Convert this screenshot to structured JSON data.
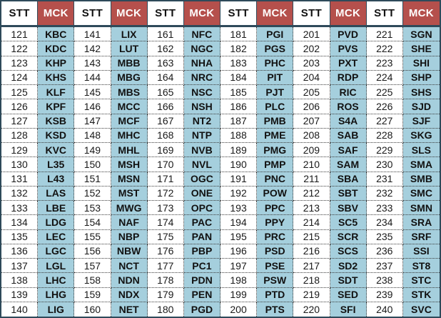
{
  "header": {
    "stt": "STT",
    "mck": "MCK"
  },
  "colors": {
    "header_red": "#B5504C",
    "ticker_blue": "#A5CFDD",
    "border_dark": "#2E4A5A",
    "header_text_white": "#FFFFFF",
    "text_black": "#111111"
  },
  "groups": [
    {
      "rows": [
        [
          "121",
          "KBC"
        ],
        [
          "122",
          "KDC"
        ],
        [
          "123",
          "KHP"
        ],
        [
          "124",
          "KHS"
        ],
        [
          "125",
          "KLF"
        ],
        [
          "126",
          "KPF"
        ],
        [
          "127",
          "KSB"
        ],
        [
          "128",
          "KSD"
        ],
        [
          "129",
          "KVC"
        ],
        [
          "130",
          "L35"
        ],
        [
          "131",
          "L43"
        ],
        [
          "132",
          "LAS"
        ],
        [
          "133",
          "LBE"
        ],
        [
          "134",
          "LDG"
        ],
        [
          "135",
          "LEC"
        ],
        [
          "136",
          "LGC"
        ],
        [
          "137",
          "LGL"
        ],
        [
          "138",
          "LHC"
        ],
        [
          "139",
          "LHG"
        ],
        [
          "140",
          "LIG"
        ]
      ]
    },
    {
      "rows": [
        [
          "141",
          "LIX"
        ],
        [
          "142",
          "LUT"
        ],
        [
          "143",
          "MBB"
        ],
        [
          "144",
          "MBG"
        ],
        [
          "145",
          "MBS"
        ],
        [
          "146",
          "MCC"
        ],
        [
          "147",
          "MCF"
        ],
        [
          "148",
          "MHC"
        ],
        [
          "149",
          "MHL"
        ],
        [
          "150",
          "MSH"
        ],
        [
          "151",
          "MSN"
        ],
        [
          "152",
          "MST"
        ],
        [
          "153",
          "MWG"
        ],
        [
          "154",
          "NAF"
        ],
        [
          "155",
          "NBP"
        ],
        [
          "156",
          "NBW"
        ],
        [
          "157",
          "NCT"
        ],
        [
          "158",
          "NDN"
        ],
        [
          "159",
          "NDX"
        ],
        [
          "160",
          "NET"
        ]
      ]
    },
    {
      "rows": [
        [
          "161",
          "NFC"
        ],
        [
          "162",
          "NGC"
        ],
        [
          "163",
          "NHA"
        ],
        [
          "164",
          "NRC"
        ],
        [
          "165",
          "NSC"
        ],
        [
          "166",
          "NSH"
        ],
        [
          "167",
          "NT2"
        ],
        [
          "168",
          "NTP"
        ],
        [
          "169",
          "NVB"
        ],
        [
          "170",
          "NVL"
        ],
        [
          "171",
          "OGC"
        ],
        [
          "172",
          "ONE"
        ],
        [
          "173",
          "OPC"
        ],
        [
          "174",
          "PAC"
        ],
        [
          "175",
          "PAN"
        ],
        [
          "176",
          "PBP"
        ],
        [
          "177",
          "PC1"
        ],
        [
          "178",
          "PDN"
        ],
        [
          "179",
          "PEN"
        ],
        [
          "180",
          "PGD"
        ]
      ]
    },
    {
      "rows": [
        [
          "181",
          "PGI"
        ],
        [
          "182",
          "PGS"
        ],
        [
          "183",
          "PHC"
        ],
        [
          "184",
          "PIT"
        ],
        [
          "185",
          "PJT"
        ],
        [
          "186",
          "PLC"
        ],
        [
          "187",
          "PMB"
        ],
        [
          "188",
          "PME"
        ],
        [
          "189",
          "PMG"
        ],
        [
          "190",
          "PMP"
        ],
        [
          "191",
          "PNC"
        ],
        [
          "192",
          "POW"
        ],
        [
          "193",
          "PPC"
        ],
        [
          "194",
          "PPY"
        ],
        [
          "195",
          "PRC"
        ],
        [
          "196",
          "PSD"
        ],
        [
          "197",
          "PSE"
        ],
        [
          "198",
          "PSW"
        ],
        [
          "199",
          "PTD"
        ],
        [
          "200",
          "PTS"
        ]
      ]
    },
    {
      "rows": [
        [
          "201",
          "PVD"
        ],
        [
          "202",
          "PVS"
        ],
        [
          "203",
          "PXT"
        ],
        [
          "204",
          "RDP"
        ],
        [
          "205",
          "RIC"
        ],
        [
          "206",
          "ROS"
        ],
        [
          "207",
          "S4A"
        ],
        [
          "208",
          "SAB"
        ],
        [
          "209",
          "SAF"
        ],
        [
          "210",
          "SAM"
        ],
        [
          "211",
          "SBA"
        ],
        [
          "212",
          "SBT"
        ],
        [
          "213",
          "SBV"
        ],
        [
          "214",
          "SC5"
        ],
        [
          "215",
          "SCR"
        ],
        [
          "216",
          "SCS"
        ],
        [
          "217",
          "SD2"
        ],
        [
          "218",
          "SDT"
        ],
        [
          "219",
          "SED"
        ],
        [
          "220",
          "SFI"
        ]
      ]
    },
    {
      "rows": [
        [
          "221",
          "SGN"
        ],
        [
          "222",
          "SHE"
        ],
        [
          "223",
          "SHI"
        ],
        [
          "224",
          "SHP"
        ],
        [
          "225",
          "SHS"
        ],
        [
          "226",
          "SJD"
        ],
        [
          "227",
          "SJF"
        ],
        [
          "228",
          "SKG"
        ],
        [
          "229",
          "SLS"
        ],
        [
          "230",
          "SMA"
        ],
        [
          "231",
          "SMB"
        ],
        [
          "232",
          "SMC"
        ],
        [
          "233",
          "SMN"
        ],
        [
          "234",
          "SRA"
        ],
        [
          "235",
          "SRF"
        ],
        [
          "236",
          "SSI"
        ],
        [
          "237",
          "ST8"
        ],
        [
          "238",
          "STC"
        ],
        [
          "239",
          "STK"
        ],
        [
          "240",
          "SVC"
        ]
      ]
    }
  ]
}
